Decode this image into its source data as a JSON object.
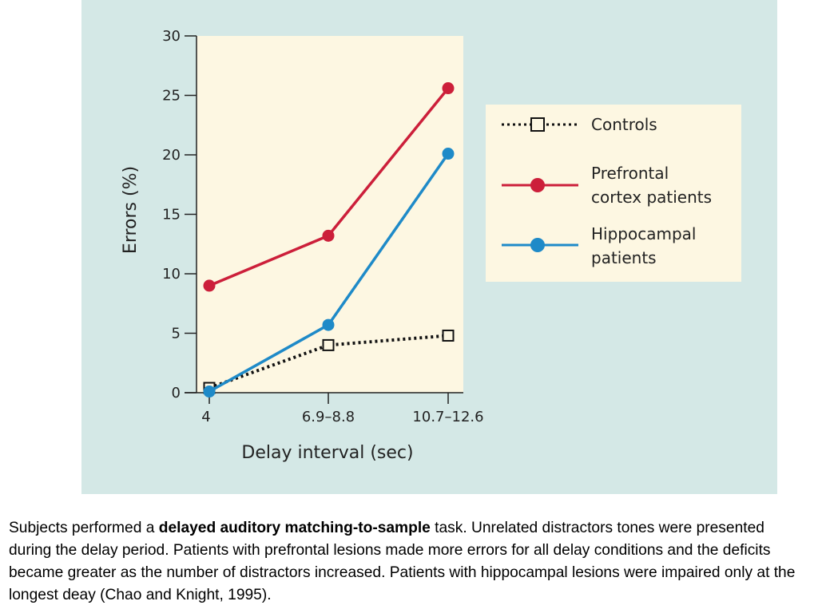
{
  "chart_data": {
    "type": "line",
    "x_categories": [
      "4",
      "6.9–8.8",
      "10.7–12.6"
    ],
    "xlabel": "Delay interval (sec)",
    "ylabel": "Errors (%)",
    "ylim": [
      0,
      30
    ],
    "y_ticks": [
      "0",
      "5",
      "10",
      "15",
      "20",
      "25",
      "30"
    ],
    "grid": false,
    "legend_position": "right",
    "series": [
      {
        "name": "Controls",
        "values": [
          0.4,
          4.0,
          4.8
        ],
        "color": "#111111",
        "style": "dotted",
        "marker": "open-square"
      },
      {
        "name": "Prefrontal cortex patients",
        "values": [
          9.0,
          13.2,
          25.6
        ],
        "color": "#cc1f3a",
        "style": "solid",
        "marker": "filled-circle"
      },
      {
        "name": "Hippocampal patients",
        "values": [
          0.1,
          5.7,
          20.1
        ],
        "color": "#1e8ac8",
        "style": "solid",
        "marker": "filled-circle"
      }
    ],
    "legend": {
      "controls": [
        "Controls"
      ],
      "prefrontal": [
        "Prefrontal",
        "cortex patients"
      ],
      "hippocampal": [
        "Hippocampal",
        "patients"
      ]
    }
  },
  "caption": {
    "part1": "Subjects performed a ",
    "bold": "delayed auditory matching-to-sample",
    "part2": " task. Unrelated distractors tones were presented during the delay period. Patients with prefrontal lesions made more errors for all delay conditions and the deficits became greater as the number of distractors increased. Patients with hippocampal lesions were impaired only at the longest deay (Chao and Knight, 1995)."
  },
  "colors": {
    "panel_bg": "#d4e8e6",
    "plot_bg": "#fdf7e2",
    "legend_bg": "#fdf7e2"
  }
}
